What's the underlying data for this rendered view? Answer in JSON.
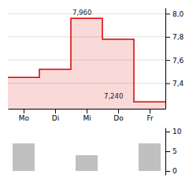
{
  "chart_data": [
    {
      "type": "area",
      "line_style": "step",
      "categories": [
        "Mo",
        "Di",
        "Mi",
        "Do",
        "Fr"
      ],
      "values": [
        7.45,
        7.52,
        7.96,
        7.78,
        7.24
      ],
      "color": "#dd0000",
      "ylim": [
        7.18,
        8.05
      ],
      "yticks": [
        {
          "value": 7.4,
          "label": "7,4"
        },
        {
          "value": 7.6,
          "label": "7,6"
        },
        {
          "value": 7.8,
          "label": "7,8"
        },
        {
          "value": 8.0,
          "label": "8,0"
        }
      ],
      "grid": true,
      "annotations": [
        {
          "text": "7,960",
          "x": 2.05,
          "y": 7.975
        },
        {
          "text": "7,240",
          "x": 3.05,
          "y": 7.255
        }
      ]
    },
    {
      "type": "bar",
      "categories": [
        "Mo",
        "Di",
        "Mi",
        "Do",
        "Fr"
      ],
      "values": [
        7,
        null,
        4,
        null,
        7
      ],
      "color": "#c0c0c0",
      "ylim": [
        -1,
        11
      ],
      "yticks": [
        0,
        5,
        10
      ],
      "tick_labels": "y"
    }
  ]
}
